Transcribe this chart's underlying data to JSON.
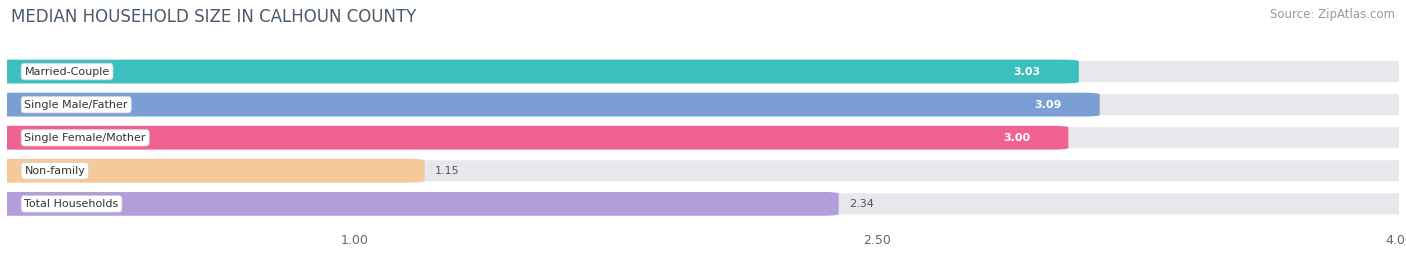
{
  "title": "MEDIAN HOUSEHOLD SIZE IN CALHOUN COUNTY",
  "source": "Source: ZipAtlas.com",
  "categories": [
    "Married-Couple",
    "Single Male/Father",
    "Single Female/Mother",
    "Non-family",
    "Total Households"
  ],
  "values": [
    3.03,
    3.09,
    3.0,
    1.15,
    2.34
  ],
  "bar_colors": [
    "#3dbfbf",
    "#7b9fd4",
    "#f06292",
    "#f5c99a",
    "#b39ddb"
  ],
  "xlim_min": 0.0,
  "xlim_max": 4.0,
  "xticks": [
    1.0,
    2.5,
    4.0
  ],
  "background_color": "#ffffff",
  "bar_bg_color": "#e8e8ec",
  "title_fontsize": 12,
  "source_fontsize": 8.5,
  "bar_height": 0.62,
  "value_inside": [
    true,
    true,
    true,
    false,
    false
  ],
  "title_color": "#4a5a6a",
  "source_color": "#999999",
  "label_fontsize": 8,
  "value_fontsize": 8
}
